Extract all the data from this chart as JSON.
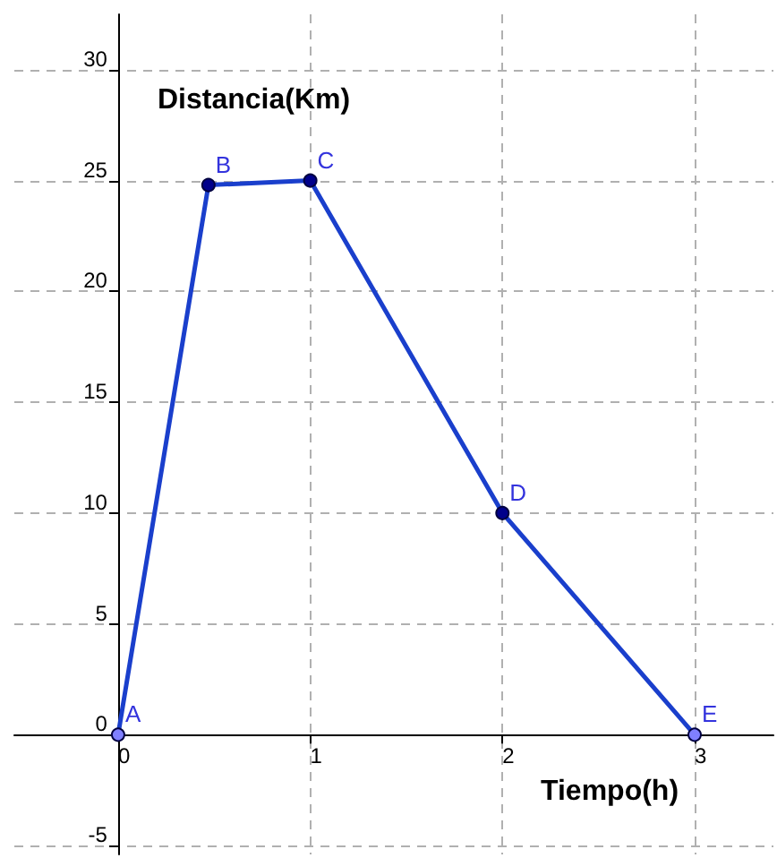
{
  "chart_data": {
    "type": "line",
    "xlabel": "Tiempo(h)",
    "ylabel": "Distancia(Km)",
    "x": [
      0,
      0.47,
      1,
      2,
      3
    ],
    "series": [
      {
        "color": "#1a3fcc",
        "values": [
          0,
          24.8,
          25,
          10,
          0
        ],
        "colors": [
          "#8080ff",
          "#00008b",
          "#00008b",
          "#00008b",
          "#8080ff"
        ]
      }
    ],
    "xlim": [
      -0.54,
      3.41
    ],
    "ylim": [
      -5.4,
      32.5
    ],
    "xticks": [
      0,
      1,
      2,
      3
    ],
    "yticks": [
      -5,
      0,
      5,
      10,
      15,
      20,
      25,
      30
    ],
    "grid": true,
    "marker": "circle",
    "line_style": "solid",
    "annotations": [
      {
        "text": "A",
        "x": 0,
        "y": 0
      },
      {
        "text": "B",
        "x": 0.47,
        "y": 24.8
      },
      {
        "text": "C",
        "x": 1,
        "y": 25
      },
      {
        "text": "D",
        "x": 2,
        "y": 10
      },
      {
        "text": "E",
        "x": 3,
        "y": 0
      }
    ]
  }
}
